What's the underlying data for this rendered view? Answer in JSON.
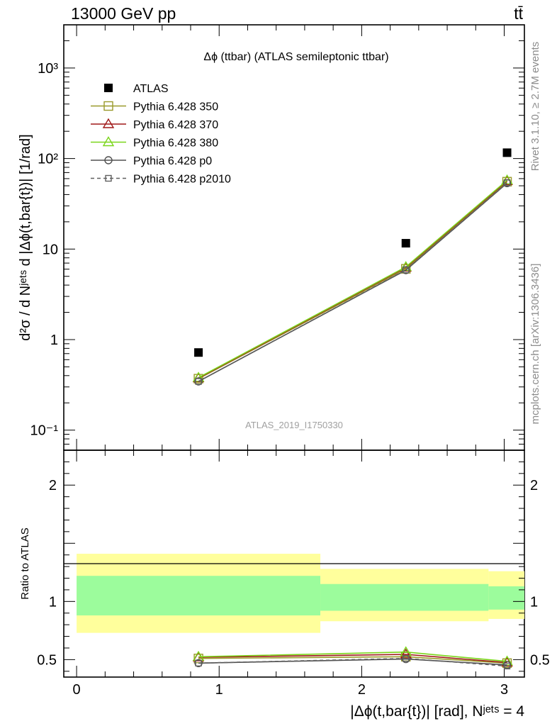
{
  "header": {
    "left": "13000 GeV pp",
    "right": "tt̄"
  },
  "side_labels": {
    "rivet": "Rivet 3.1.10, ≥ 2.7M events",
    "mcplots": "mcplots.cern.ch [arXiv:1306.3436]"
  },
  "chart_data": [
    {
      "panel": "main",
      "type": "line",
      "title": "Δϕ (ttbar) (ATLAS semileptonic ttbar)",
      "watermark": "ATLAS_2019_I1750330",
      "ylabel": "d²σ / d Nʲᵉᵗˢ d |Δϕ(t,bar{t})| [1/rad]",
      "yscale": "log",
      "ylim": [
        0.06,
        3000
      ],
      "xlim": [
        -0.09,
        3.1416
      ],
      "ytick_labels": [
        "10⁻¹",
        "1",
        "10",
        "10²",
        "10³"
      ],
      "x": [
        0.855,
        2.31,
        3.02
      ],
      "data": {
        "name": "ATLAS",
        "values": [
          0.72,
          11.6,
          116
        ]
      },
      "legend_position": "top-left",
      "series": [
        {
          "name": "Pythia 6.428 350",
          "color": "#9a9a2a",
          "marker": "square-open",
          "dash": "solid",
          "values": [
            0.37,
            6.05,
            55.5
          ]
        },
        {
          "name": "Pythia 6.428 370",
          "color": "#a01818",
          "marker": "triangle-open",
          "dash": "solid",
          "values": [
            0.375,
            6.25,
            56.5
          ]
        },
        {
          "name": "Pythia 6.428 380",
          "color": "#7ad61a",
          "marker": "triangle-open",
          "dash": "solid",
          "values": [
            0.38,
            6.35,
            57.5
          ]
        },
        {
          "name": "Pythia 6.428 p0",
          "color": "#505050",
          "marker": "circle-open",
          "dash": "solid",
          "values": [
            0.345,
            5.85,
            53.5
          ]
        },
        {
          "name": "Pythia 6.428 p2010",
          "color": "#606060",
          "marker": "square-open-small",
          "dash": "dashed",
          "values": [
            0.345,
            5.9,
            54
          ]
        }
      ]
    },
    {
      "panel": "ratio",
      "type": "line",
      "ylabel": "Ratio to ATLAS",
      "ylim": [
        0.35,
        2.3
      ],
      "xlim": [
        -0.09,
        3.1416
      ],
      "ytick_labels": [
        "0.5",
        "1",
        "2"
      ],
      "xtick_labels": [
        "0",
        "1",
        "2",
        "3"
      ],
      "xlabel": "|Δϕ(t,bar{t})| [rad], Nʲᵉᵗˢ = 4",
      "x": [
        0.855,
        2.31,
        3.02
      ],
      "bands": [
        {
          "x_lo": 0.0,
          "x_hi": 1.71,
          "yellow": [
            0.73,
            1.41
          ],
          "green": [
            0.88,
            1.22
          ]
        },
        {
          "x_lo": 1.71,
          "x_hi": 2.89,
          "yellow": [
            0.83,
            1.28
          ],
          "green": [
            0.92,
            1.15
          ]
        },
        {
          "x_lo": 2.89,
          "x_hi": 3.1416,
          "yellow": [
            0.85,
            1.26
          ],
          "green": [
            0.93,
            1.13
          ]
        }
      ],
      "series": [
        {
          "name": "Pythia 6.428 350",
          "values": [
            0.51,
            0.525,
            0.47
          ]
        },
        {
          "name": "Pythia 6.428 370",
          "values": [
            0.52,
            0.545,
            0.475
          ]
        },
        {
          "name": "Pythia 6.428 380",
          "values": [
            0.525,
            0.565,
            0.485
          ]
        },
        {
          "name": "Pythia 6.428 p0",
          "values": [
            0.47,
            0.505,
            0.455
          ]
        },
        {
          "name": "Pythia 6.428 p2010",
          "values": [
            0.47,
            0.51,
            0.445
          ]
        }
      ]
    }
  ]
}
